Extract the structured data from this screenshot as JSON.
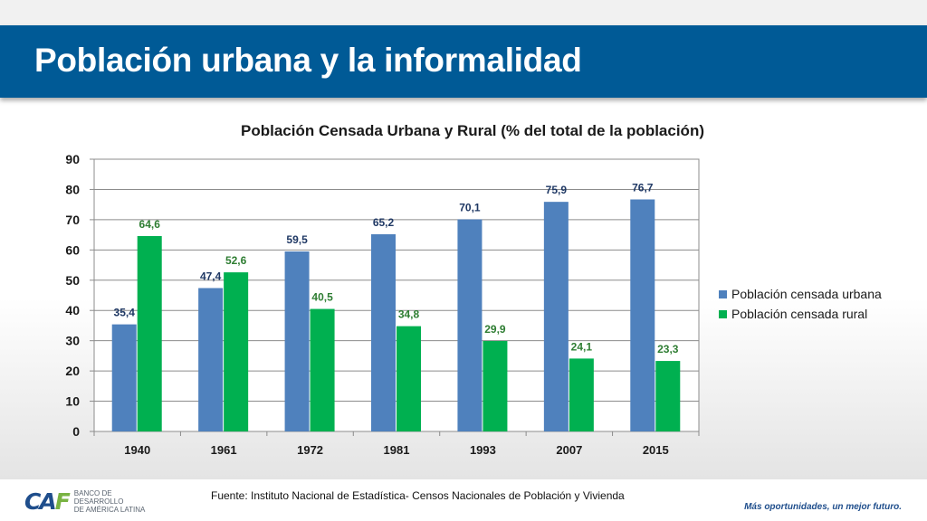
{
  "slide": {
    "title": "Población urbana y la informalidad",
    "source": "Fuente: Instituto Nacional de Estadística- Censos Nacionales de Población y Vivienda",
    "logo": {
      "mark": "CAF",
      "text_line1": "BANCO DE DESARROLLO",
      "text_line2": "DE AMÉRICA LATINA"
    },
    "tagline": "Más oportunidades, un mejor futuro.",
    "banner_color": "#005a96"
  },
  "chart_data": {
    "type": "bar",
    "title": "Población Censada Urbana y Rural (% del total de la población)",
    "xlabel": "",
    "ylabel": "",
    "categories": [
      "1940",
      "1961",
      "1972",
      "1981",
      "1993",
      "2007",
      "2015"
    ],
    "series": [
      {
        "name": "Población censada urbana",
        "color": "#4f81bd",
        "label_color": "#1f3864",
        "values": [
          35.4,
          47.4,
          59.5,
          65.2,
          70.1,
          75.9,
          76.7
        ],
        "labels": [
          "35,4",
          "47,4",
          "59,5",
          "65,2",
          "70,1",
          "75,9",
          "76,7"
        ]
      },
      {
        "name": "Población censada rural",
        "color": "#00b050",
        "label_color": "#2e7d32",
        "values": [
          64.6,
          52.6,
          40.5,
          34.8,
          29.9,
          24.1,
          23.3
        ],
        "labels": [
          "64,6",
          "52,6",
          "40,5",
          "34,8",
          "29,9",
          "24,1",
          "23,3"
        ]
      }
    ],
    "ylim": [
      0,
      90
    ],
    "yticks": [
      0,
      10,
      20,
      30,
      40,
      50,
      60,
      70,
      80,
      90
    ],
    "grid": true,
    "legend_position": "right"
  }
}
